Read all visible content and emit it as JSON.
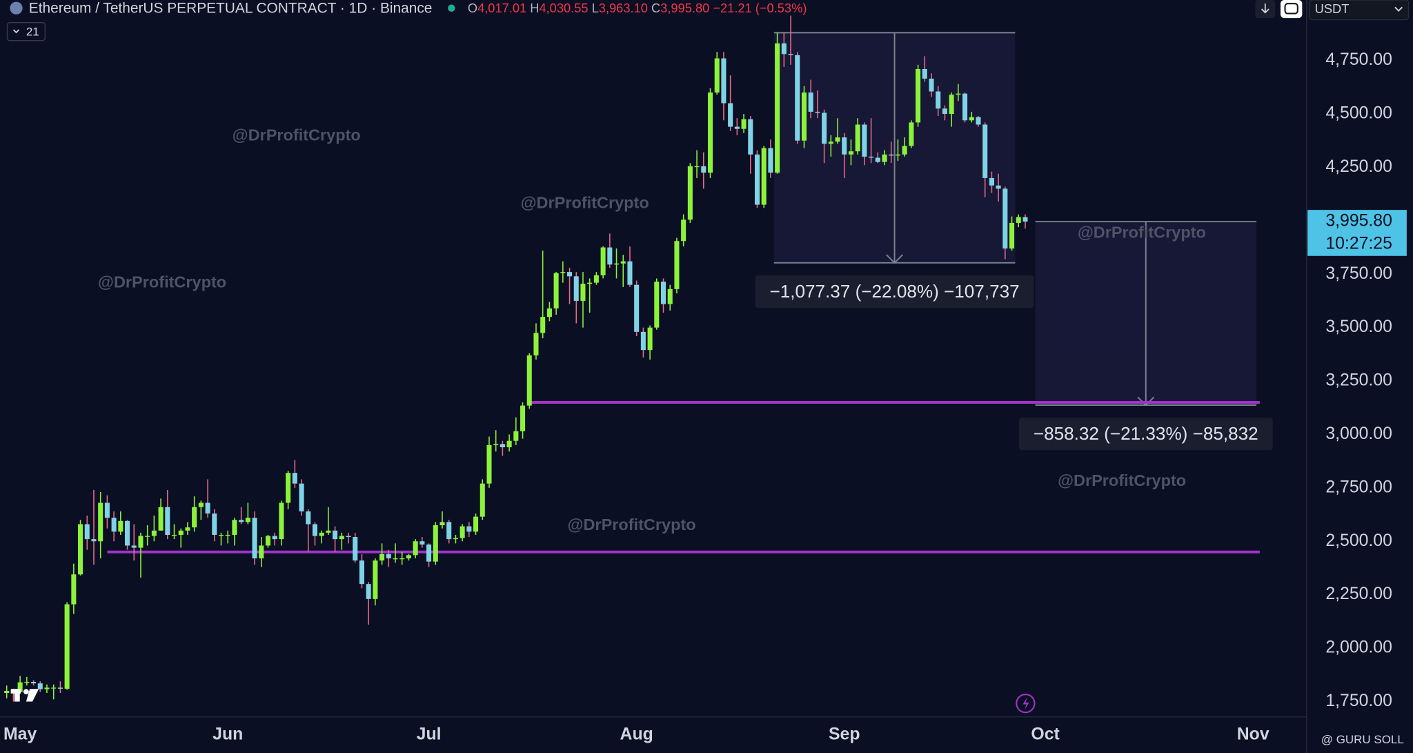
{
  "chart_data": {
    "type": "candlestick",
    "header": {
      "title": "Ethereum / TetherUS PERPETUAL CONTRACT · 1D · Binance",
      "ohlc": [
        "O",
        "4,017.01",
        "H",
        "4,030.55",
        "L",
        "3,963.10",
        "C",
        "3,995.80",
        "−21.21 (−0.53%)"
      ],
      "indicator_count": "21",
      "currency": "USDT"
    },
    "last_price": {
      "label": "3,995.80",
      "countdown": "10:27:25"
    },
    "watermarks": [
      "@DrProfitCrypto",
      "@DrProfitCrypto",
      "@DrProfitCrypto",
      "@DrProfitCrypto",
      "@DrProfitCrypto",
      "@DrProfitCrypto"
    ],
    "credit": "@ GURU SOLL",
    "up_color": "#8cf23a",
    "down_color": "#7fd3e6",
    "wick_down_color": "#e86a86",
    "level_color": "#a033c8",
    "xlim": [
      -3,
      192
    ],
    "xticks": [
      {
        "value": 0,
        "label": "May"
      },
      {
        "value": 31,
        "label": "Jun"
      },
      {
        "value": 61,
        "label": "Jul"
      },
      {
        "value": 92,
        "label": "Aug"
      },
      {
        "value": 123,
        "label": "Sep"
      },
      {
        "value": 153,
        "label": "Oct"
      },
      {
        "value": 184,
        "label": "Nov"
      }
    ],
    "ylim": [
      1678,
      5033
    ],
    "yticks": [
      {
        "value": 1750,
        "label": "1,750.00"
      },
      {
        "value": 2000,
        "label": "2,000.00"
      },
      {
        "value": 2250,
        "label": "2,250.00"
      },
      {
        "value": 2500,
        "label": "2,500.00"
      },
      {
        "value": 2750,
        "label": "2,750.00"
      },
      {
        "value": 3000,
        "label": "3,000.00"
      },
      {
        "value": 3250,
        "label": "3,250.00"
      },
      {
        "value": 3500,
        "label": "3,500.00"
      },
      {
        "value": 3750,
        "label": "3,750.00"
      },
      {
        "value": 4250,
        "label": "4,250.00"
      },
      {
        "value": 4500,
        "label": "4,500.00"
      },
      {
        "value": 4750,
        "label": "4,750.00"
      }
    ],
    "grid": false,
    "levels": [
      {
        "value": 3150,
        "from": 76,
        "to": 185
      },
      {
        "value": 2450,
        "from": 13,
        "to": 185
      }
    ],
    "measures": [
      {
        "top": 4880,
        "bottom": 3803,
        "x_start": 112.5,
        "x_end": 148.5,
        "label": "−1,077.37 (−22.08%) −107,737"
      },
      {
        "top": 3996,
        "bottom": 3137,
        "x_start": 151.5,
        "x_end": 184.5,
        "label": "−858.32 (−21.33%) −85,832"
      }
    ],
    "x": [
      -2,
      -1,
      0,
      1,
      2,
      3,
      4,
      5,
      6,
      7,
      8,
      9,
      10,
      11,
      12,
      13,
      14,
      15,
      16,
      17,
      18,
      19,
      20,
      21,
      22,
      23,
      24,
      25,
      26,
      27,
      28,
      29,
      30,
      31,
      32,
      33,
      34,
      35,
      36,
      37,
      38,
      39,
      40,
      41,
      42,
      43,
      44,
      45,
      46,
      47,
      48,
      49,
      50,
      51,
      52,
      53,
      54,
      55,
      56,
      57,
      58,
      59,
      60,
      61,
      62,
      63,
      64,
      65,
      66,
      67,
      68,
      69,
      70,
      71,
      72,
      73,
      74,
      75,
      76,
      77,
      78,
      79,
      80,
      81,
      82,
      83,
      84,
      85,
      86,
      87,
      88,
      89,
      90,
      91,
      92,
      93,
      94,
      95,
      96,
      97,
      98,
      99,
      100,
      101,
      102,
      103,
      104,
      105,
      106,
      107,
      108,
      109,
      110,
      111,
      112,
      113,
      114,
      115,
      116,
      117,
      118,
      119,
      120,
      121,
      122,
      123,
      124,
      125,
      126,
      127,
      128,
      129,
      130,
      131,
      132,
      133,
      134,
      135,
      136,
      137,
      138,
      139,
      140,
      141,
      142,
      143,
      144,
      145,
      146,
      147,
      148,
      149,
      150
    ],
    "ohlc": [
      [
        1790,
        1825,
        1765,
        1800
      ],
      [
        1800,
        1810,
        1750,
        1795
      ],
      [
        1795,
        1870,
        1790,
        1840
      ],
      [
        1840,
        1865,
        1825,
        1842
      ],
      [
        1842,
        1850,
        1825,
        1835
      ],
      [
        1835,
        1845,
        1795,
        1808
      ],
      [
        1808,
        1830,
        1790,
        1815
      ],
      [
        1815,
        1830,
        1760,
        1815
      ],
      [
        1815,
        1845,
        1790,
        1810
      ],
      [
        1810,
        2215,
        1805,
        2205
      ],
      [
        2205,
        2395,
        2160,
        2345
      ],
      [
        2345,
        2600,
        2340,
        2580
      ],
      [
        2580,
        2620,
        2460,
        2510
      ],
      [
        2510,
        2740,
        2390,
        2500
      ],
      [
        2500,
        2730,
        2420,
        2680
      ],
      [
        2680,
        2715,
        2560,
        2610
      ],
      [
        2610,
        2640,
        2500,
        2545
      ],
      [
        2545,
        2640,
        2530,
        2595
      ],
      [
        2595,
        2600,
        2460,
        2480
      ],
      [
        2480,
        2580,
        2410,
        2470
      ],
      [
        2470,
        2540,
        2330,
        2525
      ],
      [
        2525,
        2575,
        2480,
        2525
      ],
      [
        2525,
        2620,
        2500,
        2550
      ],
      [
        2550,
        2700,
        2550,
        2660
      ],
      [
        2660,
        2740,
        2510,
        2530
      ],
      [
        2530,
        2580,
        2510,
        2530
      ],
      [
        2530,
        2560,
        2470,
        2550
      ],
      [
        2550,
        2590,
        2530,
        2565
      ],
      [
        2565,
        2710,
        2545,
        2660
      ],
      [
        2660,
        2690,
        2600,
        2680
      ],
      [
        2680,
        2790,
        2610,
        2630
      ],
      [
        2630,
        2650,
        2500,
        2530
      ],
      [
        2530,
        2540,
        2480,
        2530
      ],
      [
        2530,
        2550,
        2490,
        2530
      ],
      [
        2530,
        2610,
        2480,
        2600
      ],
      [
        2600,
        2660,
        2580,
        2590
      ],
      [
        2590,
        2680,
        2580,
        2610
      ],
      [
        2610,
        2640,
        2390,
        2420
      ],
      [
        2420,
        2520,
        2380,
        2480
      ],
      [
        2480,
        2530,
        2470,
        2525
      ],
      [
        2525,
        2540,
        2480,
        2510
      ],
      [
        2510,
        2690,
        2480,
        2680
      ],
      [
        2680,
        2830,
        2650,
        2820
      ],
      [
        2820,
        2880,
        2750,
        2770
      ],
      [
        2770,
        2790,
        2620,
        2640
      ],
      [
        2640,
        2650,
        2450,
        2580
      ],
      [
        2580,
        2590,
        2480,
        2525
      ],
      [
        2525,
        2550,
        2490,
        2540
      ],
      [
        2540,
        2660,
        2530,
        2550
      ],
      [
        2550,
        2570,
        2450,
        2510
      ],
      [
        2510,
        2540,
        2460,
        2525
      ],
      [
        2525,
        2540,
        2490,
        2520
      ],
      [
        2520,
        2540,
        2400,
        2410
      ],
      [
        2410,
        2440,
        2280,
        2300
      ],
      [
        2300,
        2310,
        2110,
        2230
      ],
      [
        2230,
        2420,
        2200,
        2410
      ],
      [
        2410,
        2490,
        2390,
        2440
      ],
      [
        2440,
        2460,
        2380,
        2420
      ],
      [
        2420,
        2490,
        2400,
        2420
      ],
      [
        2420,
        2450,
        2390,
        2420
      ],
      [
        2420,
        2440,
        2410,
        2435
      ],
      [
        2435,
        2510,
        2420,
        2500
      ],
      [
        2500,
        2520,
        2470,
        2485
      ],
      [
        2485,
        2490,
        2380,
        2405
      ],
      [
        2405,
        2590,
        2390,
        2575
      ],
      [
        2575,
        2640,
        2560,
        2590
      ],
      [
        2590,
        2600,
        2490,
        2510
      ],
      [
        2510,
        2530,
        2490,
        2515
      ],
      [
        2515,
        2580,
        2500,
        2570
      ],
      [
        2570,
        2590,
        2520,
        2545
      ],
      [
        2545,
        2630,
        2530,
        2615
      ],
      [
        2615,
        2790,
        2600,
        2770
      ],
      [
        2770,
        2990,
        2750,
        2950
      ],
      [
        2950,
        3020,
        2920,
        2955
      ],
      [
        2955,
        2970,
        2900,
        2940
      ],
      [
        2940,
        3000,
        2920,
        2970
      ],
      [
        2970,
        3080,
        2950,
        3015
      ],
      [
        3015,
        3150,
        2980,
        3135
      ],
      [
        3135,
        3380,
        3120,
        3370
      ],
      [
        3370,
        3520,
        3350,
        3475
      ],
      [
        3475,
        3860,
        3450,
        3550
      ],
      [
        3550,
        3620,
        3530,
        3590
      ],
      [
        3590,
        3760,
        3560,
        3755
      ],
      [
        3755,
        3810,
        3710,
        3760
      ],
      [
        3760,
        3780,
        3610,
        3740
      ],
      [
        3740,
        3760,
        3520,
        3625
      ],
      [
        3625,
        3760,
        3500,
        3705
      ],
      [
        3705,
        3730,
        3570,
        3710
      ],
      [
        3710,
        3760,
        3700,
        3745
      ],
      [
        3745,
        3880,
        3730,
        3875
      ],
      [
        3875,
        3940,
        3780,
        3795
      ],
      [
        3795,
        3870,
        3730,
        3800
      ],
      [
        3800,
        3840,
        3690,
        3810
      ],
      [
        3810,
        3880,
        3690,
        3700
      ],
      [
        3700,
        3720,
        3460,
        3480
      ],
      [
        3480,
        3500,
        3360,
        3395
      ],
      [
        3395,
        3510,
        3350,
        3500
      ],
      [
        3500,
        3730,
        3490,
        3715
      ],
      [
        3715,
        3730,
        3570,
        3610
      ],
      [
        3610,
        3700,
        3580,
        3680
      ],
      [
        3680,
        3920,
        3660,
        3905
      ],
      [
        3905,
        4030,
        3880,
        4005
      ],
      [
        4005,
        4270,
        3990,
        4255
      ],
      [
        4255,
        4330,
        4200,
        4255
      ],
      [
        4255,
        4320,
        4150,
        4225
      ],
      [
        4225,
        4620,
        4200,
        4600
      ],
      [
        4600,
        4790,
        4590,
        4760
      ],
      [
        4760,
        4790,
        4470,
        4550
      ],
      [
        4550,
        4680,
        4420,
        4440
      ],
      [
        4440,
        4480,
        4400,
        4430
      ],
      [
        4430,
        4500,
        4410,
        4475
      ],
      [
        4475,
        4490,
        4220,
        4310
      ],
      [
        4310,
        4330,
        4060,
        4075
      ],
      [
        4075,
        4350,
        4060,
        4340
      ],
      [
        4340,
        4380,
        4200,
        4225
      ],
      [
        4225,
        4880,
        4220,
        4830
      ],
      [
        4830,
        4880,
        4720,
        4780
      ],
      [
        4780,
        4960,
        4730,
        4775
      ],
      [
        4775,
        4790,
        4360,
        4375
      ],
      [
        4375,
        4630,
        4340,
        4600
      ],
      [
        4600,
        4660,
        4480,
        4510
      ],
      [
        4510,
        4610,
        4480,
        4505
      ],
      [
        4505,
        4520,
        4270,
        4360
      ],
      [
        4360,
        4400,
        4300,
        4370
      ],
      [
        4370,
        4480,
        4360,
        4390
      ],
      [
        4390,
        4410,
        4200,
        4310
      ],
      [
        4310,
        4380,
        4260,
        4325
      ],
      [
        4325,
        4480,
        4310,
        4450
      ],
      [
        4450,
        4460,
        4260,
        4300
      ],
      [
        4300,
        4480,
        4270,
        4295
      ],
      [
        4295,
        4320,
        4270,
        4275
      ],
      [
        4275,
        4330,
        4260,
        4310
      ],
      [
        4310,
        4370,
        4270,
        4305
      ],
      [
        4305,
        4380,
        4280,
        4310
      ],
      [
        4310,
        4390,
        4300,
        4350
      ],
      [
        4350,
        4470,
        4340,
        4460
      ],
      [
        4460,
        4730,
        4440,
        4710
      ],
      [
        4710,
        4770,
        4650,
        4665
      ],
      [
        4665,
        4690,
        4580,
        4605
      ],
      [
        4605,
        4630,
        4490,
        4525
      ],
      [
        4525,
        4540,
        4470,
        4500
      ],
      [
        4500,
        4600,
        4440,
        4590
      ],
      [
        4590,
        4640,
        4560,
        4595
      ],
      [
        4595,
        4600,
        4460,
        4470
      ],
      [
        4470,
        4510,
        4460,
        4485
      ],
      [
        4485,
        4490,
        4440,
        4450
      ],
      [
        4450,
        4460,
        4110,
        4200
      ],
      [
        4200,
        4230,
        4130,
        4165
      ],
      [
        4165,
        4220,
        4090,
        4150
      ],
      [
        4150,
        4160,
        3820,
        3870
      ],
      [
        3870,
        4020,
        3860,
        3990
      ],
      [
        3990,
        4030,
        3970,
        4017.01
      ],
      [
        4017.01,
        4030.55,
        3963.1,
        3995.8
      ]
    ]
  }
}
